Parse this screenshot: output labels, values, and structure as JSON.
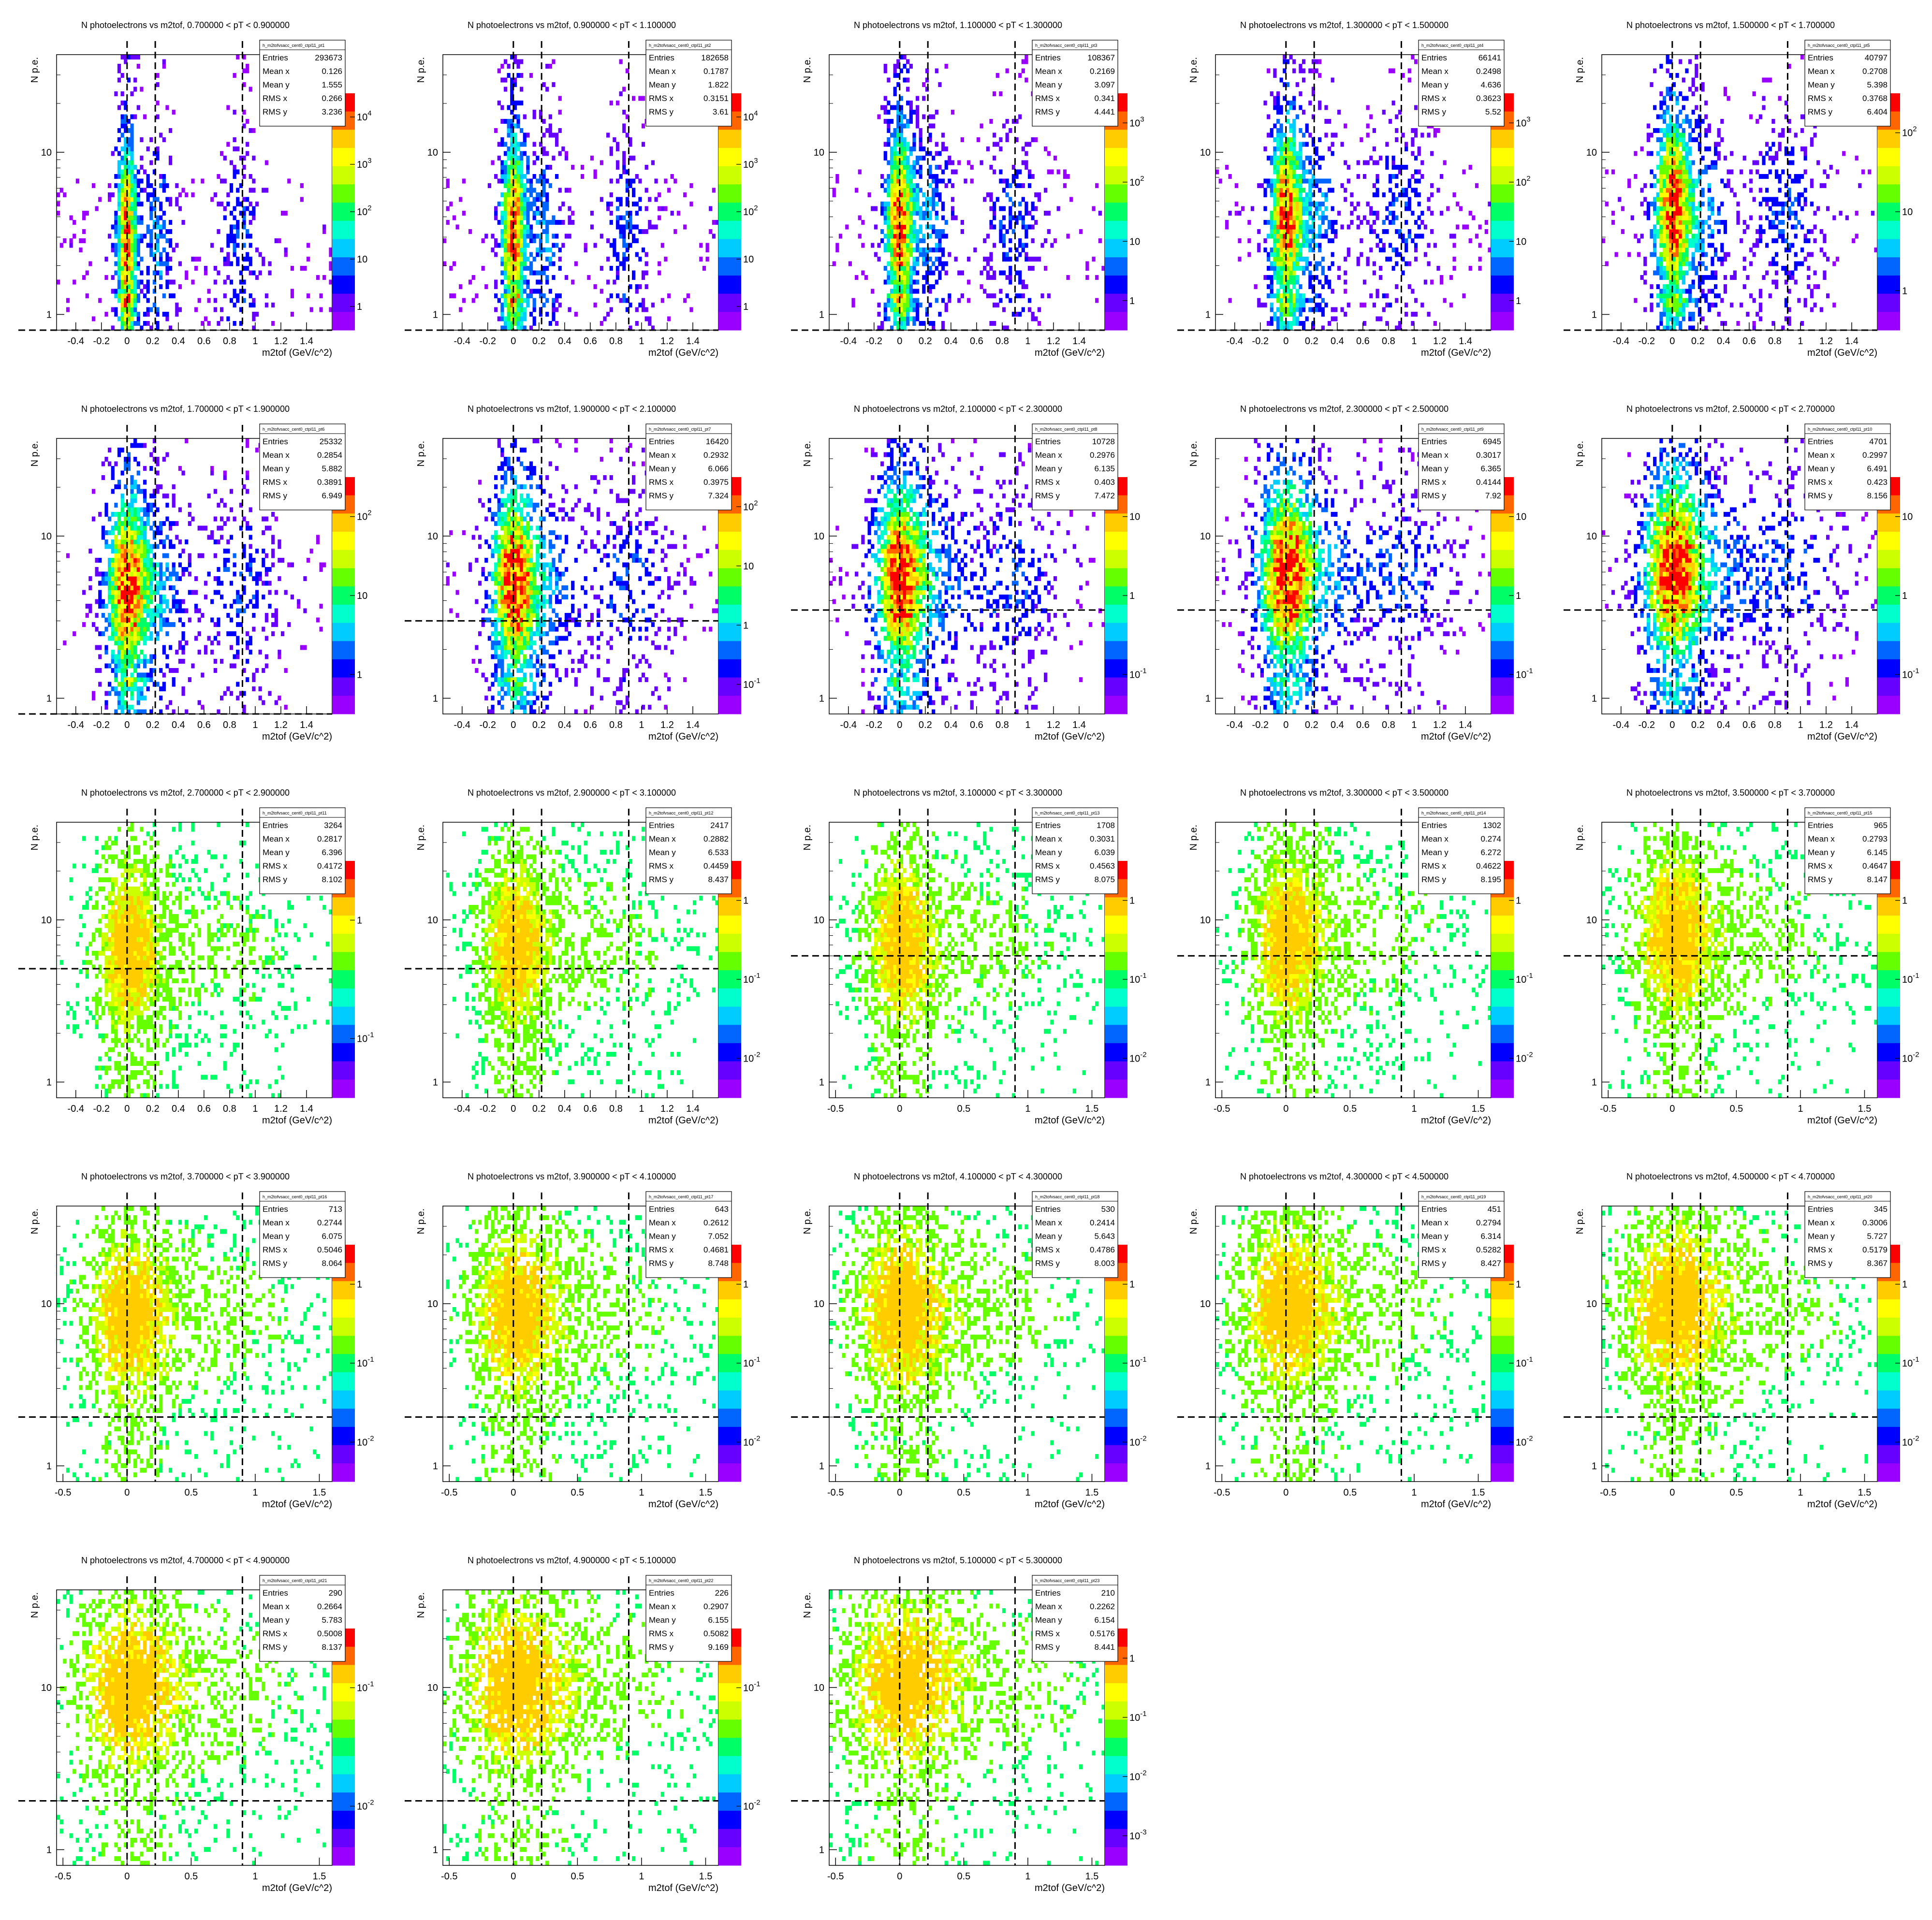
{
  "page": {
    "background": "#ffffff"
  },
  "style": {
    "frame_color": "#000000",
    "cut_line_color": "#000000",
    "palette": [
      "#ff0000",
      "#ff6600",
      "#ffcc00",
      "#ffff00",
      "#ccff00",
      "#66ff00",
      "#00ff66",
      "#00ffcc",
      "#00ccff",
      "#0066ff",
      "#0000ff",
      "#6600ff",
      "#9900ff"
    ]
  },
  "chart_data": [
    {
      "type": "heatmap",
      "title": "N photoelectrons vs m2tof, 0.700000 < pT < 0.900000",
      "hist_name": "h_m2tofvsacc_cent0_ctpl11_pt1",
      "xlabel": "m2tof (GeV/c^2)",
      "ylabel": "N p.e.",
      "xlim": [
        -0.55,
        1.6
      ],
      "ylim": [
        0.8,
        40
      ],
      "yscale": "log",
      "xticks": [
        "-0.4",
        "-0.2",
        "0",
        "0.2",
        "0.4",
        "0.6",
        "0.8",
        "1",
        "1.2",
        "1.4"
      ],
      "yticks": [
        "1",
        "10"
      ],
      "xcuts": [
        0,
        0.22,
        0.9
      ],
      "ycut": 0.8,
      "zticks": [
        "1",
        "10",
        "10^2",
        "10^3",
        "10^4"
      ],
      "stats": {
        "Entries": "293673",
        "Mean x": "0.126",
        "Mean y": "1.555",
        "RMS x": "0.266",
        "RMS y": "3.236"
      }
    },
    {
      "type": "heatmap",
      "title": "N photoelectrons vs m2tof, 0.900000 < pT < 1.100000",
      "hist_name": "h_m2tofvsacc_cent0_ctpl11_pt2",
      "xlabel": "m2tof (GeV/c^2)",
      "ylabel": "N p.e.",
      "xlim": [
        -0.55,
        1.6
      ],
      "ylim": [
        0.8,
        40
      ],
      "yscale": "log",
      "xticks": [
        "-0.4",
        "-0.2",
        "0",
        "0.2",
        "0.4",
        "0.6",
        "0.8",
        "1",
        "1.2",
        "1.4"
      ],
      "yticks": [
        "1",
        "10"
      ],
      "xcuts": [
        0,
        0.22,
        0.9
      ],
      "ycut": 0.8,
      "zticks": [
        "1",
        "10",
        "10^2",
        "10^3",
        "10^4"
      ],
      "stats": {
        "Entries": "182658",
        "Mean x": "0.1787",
        "Mean y": "1.822",
        "RMS x": "0.3151",
        "RMS y": "3.61"
      }
    },
    {
      "type": "heatmap",
      "title": "N photoelectrons vs m2tof, 1.100000 < pT < 1.300000",
      "hist_name": "h_m2tofvsacc_cent0_ctpl11_pt3",
      "xlabel": "m2tof (GeV/c^2)",
      "ylabel": "N p.e.",
      "xlim": [
        -0.55,
        1.6
      ],
      "ylim": [
        0.8,
        40
      ],
      "yscale": "log",
      "xticks": [
        "-0.4",
        "-0.2",
        "0",
        "0.2",
        "0.4",
        "0.6",
        "0.8",
        "1",
        "1.2",
        "1.4"
      ],
      "yticks": [
        "1",
        "10"
      ],
      "xcuts": [
        0,
        0.22,
        0.9
      ],
      "ycut": 0.8,
      "zticks": [
        "1",
        "10",
        "10^2",
        "10^3"
      ],
      "stats": {
        "Entries": "108367",
        "Mean x": "0.2169",
        "Mean y": "3.097",
        "RMS x": "0.341",
        "RMS y": "4.441"
      }
    },
    {
      "type": "heatmap",
      "title": "N photoelectrons vs m2tof, 1.300000 < pT < 1.500000",
      "hist_name": "h_m2tofvsacc_cent0_ctpl11_pt4",
      "xlabel": "m2tof (GeV/c^2)",
      "ylabel": "N p.e.",
      "xlim": [
        -0.55,
        1.6
      ],
      "ylim": [
        0.8,
        40
      ],
      "yscale": "log",
      "xticks": [
        "-0.4",
        "-0.2",
        "0",
        "0.2",
        "0.4",
        "0.6",
        "0.8",
        "1",
        "1.2",
        "1.4"
      ],
      "yticks": [
        "1",
        "10"
      ],
      "xcuts": [
        0,
        0.22,
        0.9
      ],
      "ycut": 0.8,
      "zticks": [
        "1",
        "10",
        "10^2",
        "10^3"
      ],
      "stats": {
        "Entries": "66141",
        "Mean x": "0.2498",
        "Mean y": "4.636",
        "RMS x": "0.3623",
        "RMS y": "5.52"
      }
    },
    {
      "type": "heatmap",
      "title": "N photoelectrons vs m2tof, 1.500000 < pT < 1.700000",
      "hist_name": "h_m2tofvsacc_cent0_ctpl11_pt5",
      "xlabel": "m2tof (GeV/c^2)",
      "ylabel": "N p.e.",
      "xlim": [
        -0.55,
        1.6
      ],
      "ylim": [
        0.8,
        40
      ],
      "yscale": "log",
      "xticks": [
        "-0.4",
        "-0.2",
        "0",
        "0.2",
        "0.4",
        "0.6",
        "0.8",
        "1",
        "1.2",
        "1.4"
      ],
      "yticks": [
        "1",
        "10"
      ],
      "xcuts": [
        0,
        0.22,
        0.9
      ],
      "ycut": 0.8,
      "zticks": [
        "1",
        "10",
        "10^2"
      ],
      "stats": {
        "Entries": "40797",
        "Mean x": "0.2708",
        "Mean y": "5.398",
        "RMS x": "0.3768",
        "RMS y": "6.404"
      }
    },
    {
      "type": "heatmap",
      "title": "N photoelectrons vs m2tof, 1.700000 < pT < 1.900000",
      "hist_name": "h_m2tofvsacc_cent0_ctpl11_pt6",
      "xlabel": "m2tof (GeV/c^2)",
      "ylabel": "N p.e.",
      "xlim": [
        -0.55,
        1.6
      ],
      "ylim": [
        0.8,
        40
      ],
      "yscale": "log",
      "xticks": [
        "-0.4",
        "-0.2",
        "0",
        "0.2",
        "0.4",
        "0.6",
        "0.8",
        "1",
        "1.2",
        "1.4"
      ],
      "yticks": [
        "1",
        "10"
      ],
      "xcuts": [
        0,
        0.22,
        0.9
      ],
      "ycut": 0.8,
      "zticks": [
        "1",
        "10",
        "10^2"
      ],
      "stats": {
        "Entries": "25332",
        "Mean x": "0.2854",
        "Mean y": "5.882",
        "RMS x": "0.3891",
        "RMS y": "6.949"
      }
    },
    {
      "type": "heatmap",
      "title": "N photoelectrons vs m2tof, 1.900000 < pT < 2.100000",
      "hist_name": "h_m2tofvsacc_cent0_ctpl11_pt7",
      "xlabel": "m2tof (GeV/c^2)",
      "ylabel": "N p.e.",
      "xlim": [
        -0.55,
        1.6
      ],
      "ylim": [
        0.8,
        40
      ],
      "yscale": "log",
      "xticks": [
        "-0.4",
        "-0.2",
        "0",
        "0.2",
        "0.4",
        "0.6",
        "0.8",
        "1",
        "1.2",
        "1.4"
      ],
      "yticks": [
        "1",
        "10"
      ],
      "xcuts": [
        0,
        0.22,
        0.9
      ],
      "ycut": 3,
      "zticks": [
        "10^-1",
        "1",
        "10",
        "10^2"
      ],
      "stats": {
        "Entries": "16420",
        "Mean x": "0.2932",
        "Mean y": "6.066",
        "RMS x": "0.3975",
        "RMS y": "7.324"
      }
    },
    {
      "type": "heatmap",
      "title": "N photoelectrons vs m2tof, 2.100000 < pT < 2.300000",
      "hist_name": "h_m2tofvsacc_cent0_ctpl11_pt8",
      "xlabel": "m2tof (GeV/c^2)",
      "ylabel": "N p.e.",
      "xlim": [
        -0.55,
        1.6
      ],
      "ylim": [
        0.8,
        40
      ],
      "yscale": "log",
      "xticks": [
        "-0.4",
        "-0.2",
        "0",
        "0.2",
        "0.4",
        "0.6",
        "0.8",
        "1",
        "1.2",
        "1.4"
      ],
      "yticks": [
        "1",
        "10"
      ],
      "xcuts": [
        0,
        0.22,
        0.9
      ],
      "ycut": 3.5,
      "zticks": [
        "10^-1",
        "1",
        "10"
      ],
      "stats": {
        "Entries": "10728",
        "Mean x": "0.2976",
        "Mean y": "6.135",
        "RMS x": "0.403",
        "RMS y": "7.472"
      }
    },
    {
      "type": "heatmap",
      "title": "N photoelectrons vs m2tof, 2.300000 < pT < 2.500000",
      "hist_name": "h_m2tofvsacc_cent0_ctpl11_pt9",
      "xlabel": "m2tof (GeV/c^2)",
      "ylabel": "N p.e.",
      "xlim": [
        -0.55,
        1.6
      ],
      "ylim": [
        0.8,
        40
      ],
      "yscale": "log",
      "xticks": [
        "-0.4",
        "-0.2",
        "0",
        "0.2",
        "0.4",
        "0.6",
        "0.8",
        "1",
        "1.2",
        "1.4"
      ],
      "yticks": [
        "1",
        "10"
      ],
      "xcuts": [
        0,
        0.22,
        0.9
      ],
      "ycut": 3.5,
      "zticks": [
        "10^-1",
        "1",
        "10"
      ],
      "stats": {
        "Entries": "6945",
        "Mean x": "0.3017",
        "Mean y": "6.365",
        "RMS x": "0.4144",
        "RMS y": "7.92"
      }
    },
    {
      "type": "heatmap",
      "title": "N photoelectrons vs m2tof, 2.500000 < pT < 2.700000",
      "hist_name": "h_m2tofvsacc_cent0_ctpl11_pt10",
      "xlabel": "m2tof (GeV/c^2)",
      "ylabel": "N p.e.",
      "xlim": [
        -0.55,
        1.6
      ],
      "ylim": [
        0.8,
        40
      ],
      "yscale": "log",
      "xticks": [
        "-0.4",
        "-0.2",
        "0",
        "0.2",
        "0.4",
        "0.6",
        "0.8",
        "1",
        "1.2",
        "1.4"
      ],
      "yticks": [
        "1",
        "10"
      ],
      "xcuts": [
        0,
        0.22,
        0.9
      ],
      "ycut": 3.5,
      "zticks": [
        "10^-1",
        "1",
        "10"
      ],
      "stats": {
        "Entries": "4701",
        "Mean x": "0.2997",
        "Mean y": "6.491",
        "RMS x": "0.423",
        "RMS y": "8.156"
      }
    },
    {
      "type": "heatmap",
      "title": "N photoelectrons vs m2tof, 2.700000 < pT < 2.900000",
      "hist_name": "h_m2tofvsacc_cent0_ctpl11_pt11",
      "xlabel": "m2tof (GeV/c^2)",
      "ylabel": "N p.e.",
      "xlim": [
        -0.55,
        1.6
      ],
      "ylim": [
        0.8,
        40
      ],
      "yscale": "log",
      "xticks": [
        "-0.4",
        "-0.2",
        "0",
        "0.2",
        "0.4",
        "0.6",
        "0.8",
        "1",
        "1.2",
        "1.4"
      ],
      "yticks": [
        "1",
        "10"
      ],
      "xcuts": [
        0,
        0.22,
        0.9
      ],
      "ycut": 5,
      "zticks": [
        "10^-1",
        "1"
      ],
      "stats": {
        "Entries": "3264",
        "Mean x": "0.2817",
        "Mean y": "6.396",
        "RMS x": "0.4172",
        "RMS y": "8.102"
      }
    },
    {
      "type": "heatmap",
      "title": "N photoelectrons vs m2tof, 2.900000 < pT < 3.100000",
      "hist_name": "h_m2tofvsacc_cent0_ctpl11_pt12",
      "xlabel": "m2tof (GeV/c^2)",
      "ylabel": "N p.e.",
      "xlim": [
        -0.55,
        1.6
      ],
      "ylim": [
        0.8,
        40
      ],
      "yscale": "log",
      "xticks": [
        "-0.4",
        "-0.2",
        "0",
        "0.2",
        "0.4",
        "0.6",
        "0.8",
        "1",
        "1.2",
        "1.4"
      ],
      "yticks": [
        "1",
        "10"
      ],
      "xcuts": [
        0,
        0.22,
        0.9
      ],
      "ycut": 5,
      "zticks": [
        "10^-2",
        "10^-1",
        "1"
      ],
      "stats": {
        "Entries": "2417",
        "Mean x": "0.2882",
        "Mean y": "6.533",
        "RMS x": "0.4459",
        "RMS y": "8.437"
      }
    },
    {
      "type": "heatmap",
      "title": "N photoelectrons vs m2tof, 3.100000 < pT < 3.300000",
      "hist_name": "h_m2tofvsacc_cent0_ctpl11_pt13",
      "xlabel": "m2tof (GeV/c^2)",
      "ylabel": "N p.e.",
      "xlim": [
        -0.55,
        1.6
      ],
      "ylim": [
        0.8,
        40
      ],
      "yscale": "log",
      "xticks": [
        "-0.5",
        "0",
        "0.5",
        "1",
        "1.5"
      ],
      "yticks": [
        "1",
        "10"
      ],
      "xcuts": [
        0,
        0.22,
        0.9
      ],
      "ycut": 6,
      "zticks": [
        "10^-2",
        "10^-1",
        "1"
      ],
      "stats": {
        "Entries": "1708",
        "Mean x": "0.3031",
        "Mean y": "6.039",
        "RMS x": "0.4563",
        "RMS y": "8.075"
      }
    },
    {
      "type": "heatmap",
      "title": "N photoelectrons vs m2tof, 3.300000 < pT < 3.500000",
      "hist_name": "h_m2tofvsacc_cent0_ctpl11_pt14",
      "xlabel": "m2tof (GeV/c^2)",
      "ylabel": "N p.e.",
      "xlim": [
        -0.55,
        1.6
      ],
      "ylim": [
        0.8,
        40
      ],
      "yscale": "log",
      "xticks": [
        "-0.5",
        "0",
        "0.5",
        "1",
        "1.5"
      ],
      "yticks": [
        "1",
        "10"
      ],
      "xcuts": [
        0,
        0.22,
        0.9
      ],
      "ycut": 6,
      "zticks": [
        "10^-2",
        "10^-1",
        "1"
      ],
      "stats": {
        "Entries": "1302",
        "Mean x": "0.274",
        "Mean y": "6.272",
        "RMS x": "0.4622",
        "RMS y": "8.195"
      }
    },
    {
      "type": "heatmap",
      "title": "N photoelectrons vs m2tof, 3.500000 < pT < 3.700000",
      "hist_name": "h_m2tofvsacc_cent0_ctpl11_pt15",
      "xlabel": "m2tof (GeV/c^2)",
      "ylabel": "N p.e.",
      "xlim": [
        -0.55,
        1.6
      ],
      "ylim": [
        0.8,
        40
      ],
      "yscale": "log",
      "xticks": [
        "-0.5",
        "0",
        "0.5",
        "1",
        "1.5"
      ],
      "yticks": [
        "1",
        "10"
      ],
      "xcuts": [
        0,
        0.22,
        0.9
      ],
      "ycut": 6,
      "zticks": [
        "10^-2",
        "10^-1",
        "1"
      ],
      "stats": {
        "Entries": "965",
        "Mean x": "0.2793",
        "Mean y": "6.145",
        "RMS x": "0.4647",
        "RMS y": "8.147"
      }
    },
    {
      "type": "heatmap",
      "title": "N photoelectrons vs m2tof, 3.700000 < pT < 3.900000",
      "hist_name": "h_m2tofvsacc_cent0_ctpl11_pt16",
      "xlabel": "m2tof (GeV/c^2)",
      "ylabel": "N p.e.",
      "xlim": [
        -0.55,
        1.6
      ],
      "ylim": [
        0.8,
        40
      ],
      "yscale": "log",
      "xticks": [
        "-0.5",
        "0",
        "0.5",
        "1",
        "1.5"
      ],
      "yticks": [
        "1",
        "10"
      ],
      "xcuts": [
        0,
        0.22,
        0.9
      ],
      "ycut": 2,
      "zticks": [
        "10^-2",
        "10^-1",
        "1"
      ],
      "stats": {
        "Entries": "713",
        "Mean x": "0.2744",
        "Mean y": "6.075",
        "RMS x": "0.5046",
        "RMS y": "8.064"
      }
    },
    {
      "type": "heatmap",
      "title": "N photoelectrons vs m2tof, 3.900000 < pT < 4.100000",
      "hist_name": "h_m2tofvsacc_cent0_ctpl11_pt17",
      "xlabel": "m2tof (GeV/c^2)",
      "ylabel": "N p.e.",
      "xlim": [
        -0.55,
        1.6
      ],
      "ylim": [
        0.8,
        40
      ],
      "yscale": "log",
      "xticks": [
        "-0.5",
        "0",
        "0.5",
        "1",
        "1.5"
      ],
      "yticks": [
        "1",
        "10"
      ],
      "xcuts": [
        0,
        0.22,
        0.9
      ],
      "ycut": 2,
      "zticks": [
        "10^-2",
        "10^-1",
        "1"
      ],
      "stats": {
        "Entries": "643",
        "Mean x": "0.2612",
        "Mean y": "7.052",
        "RMS x": "0.4681",
        "RMS y": "8.748"
      }
    },
    {
      "type": "heatmap",
      "title": "N photoelectrons vs m2tof, 4.100000 < pT < 4.300000",
      "hist_name": "h_m2tofvsacc_cent0_ctpl11_pt18",
      "xlabel": "m2tof (GeV/c^2)",
      "ylabel": "N p.e.",
      "xlim": [
        -0.55,
        1.6
      ],
      "ylim": [
        0.8,
        40
      ],
      "yscale": "log",
      "xticks": [
        "-0.5",
        "0",
        "0.5",
        "1",
        "1.5"
      ],
      "yticks": [
        "1",
        "10"
      ],
      "xcuts": [
        0,
        0.22,
        0.9
      ],
      "ycut": 2,
      "zticks": [
        "10^-2",
        "10^-1",
        "1"
      ],
      "stats": {
        "Entries": "530",
        "Mean x": "0.2414",
        "Mean y": "5.643",
        "RMS x": "0.4786",
        "RMS y": "8.003"
      }
    },
    {
      "type": "heatmap",
      "title": "N photoelectrons vs m2tof, 4.300000 < pT < 4.500000",
      "hist_name": "h_m2tofvsacc_cent0_ctpl11_pt19",
      "xlabel": "m2tof (GeV/c^2)",
      "ylabel": "N p.e.",
      "xlim": [
        -0.55,
        1.6
      ],
      "ylim": [
        0.8,
        40
      ],
      "yscale": "log",
      "xticks": [
        "-0.5",
        "0",
        "0.5",
        "1",
        "1.5"
      ],
      "yticks": [
        "1",
        "10"
      ],
      "xcuts": [
        0,
        0.22,
        0.9
      ],
      "ycut": 2,
      "zticks": [
        "10^-2",
        "10^-1",
        "1"
      ],
      "stats": {
        "Entries": "451",
        "Mean x": "0.2794",
        "Mean y": "6.314",
        "RMS x": "0.5282",
        "RMS y": "8.427"
      }
    },
    {
      "type": "heatmap",
      "title": "N photoelectrons vs m2tof, 4.500000 < pT < 4.700000",
      "hist_name": "h_m2tofvsacc_cent0_ctpl11_pt20",
      "xlabel": "m2tof (GeV/c^2)",
      "ylabel": "N p.e.",
      "xlim": [
        -0.55,
        1.6
      ],
      "ylim": [
        0.8,
        40
      ],
      "yscale": "log",
      "xticks": [
        "-0.5",
        "0",
        "0.5",
        "1",
        "1.5"
      ],
      "yticks": [
        "1",
        "10"
      ],
      "xcuts": [
        0,
        0.22,
        0.9
      ],
      "ycut": 2,
      "zticks": [
        "10^-2",
        "10^-1",
        "1"
      ],
      "stats": {
        "Entries": "345",
        "Mean x": "0.3006",
        "Mean y": "5.727",
        "RMS x": "0.5179",
        "RMS y": "8.367"
      }
    },
    {
      "type": "heatmap",
      "title": "N photoelectrons vs m2tof, 4.700000 < pT < 4.900000",
      "hist_name": "h_m2tofvsacc_cent0_ctpl11_pt21",
      "xlabel": "m2tof (GeV/c^2)",
      "ylabel": "N p.e.",
      "xlim": [
        -0.55,
        1.6
      ],
      "ylim": [
        0.8,
        40
      ],
      "yscale": "log",
      "xticks": [
        "-0.5",
        "0",
        "0.5",
        "1",
        "1.5"
      ],
      "yticks": [
        "1",
        "10"
      ],
      "xcuts": [
        0,
        0.22,
        0.9
      ],
      "ycut": 2,
      "zticks": [
        "10^-2",
        "10^-1"
      ],
      "stats": {
        "Entries": "290",
        "Mean x": "0.2664",
        "Mean y": "5.783",
        "RMS x": "0.5008",
        "RMS y": "8.137"
      }
    },
    {
      "type": "heatmap",
      "title": "N photoelectrons vs m2tof, 4.900000 < pT < 5.100000",
      "hist_name": "h_m2tofvsacc_cent0_ctpl11_pt22",
      "xlabel": "m2tof (GeV/c^2)",
      "ylabel": "N p.e.",
      "xlim": [
        -0.55,
        1.6
      ],
      "ylim": [
        0.8,
        40
      ],
      "yscale": "log",
      "xticks": [
        "-0.5",
        "0",
        "0.5",
        "1",
        "1.5"
      ],
      "yticks": [
        "1",
        "10"
      ],
      "xcuts": [
        0,
        0.22,
        0.9
      ],
      "ycut": 2,
      "zticks": [
        "10^-2",
        "10^-1"
      ],
      "stats": {
        "Entries": "226",
        "Mean x": "0.2907",
        "Mean y": "6.155",
        "RMS x": "0.5082",
        "RMS y": "9.169"
      }
    },
    {
      "type": "heatmap",
      "title": "N photoelectrons vs m2tof, 5.100000 < pT < 5.300000",
      "hist_name": "h_m2tofvsacc_cent0_ctpl11_pt23",
      "xlabel": "m2tof (GeV/c^2)",
      "ylabel": "N p.e.",
      "xlim": [
        -0.55,
        1.6
      ],
      "ylim": [
        0.8,
        40
      ],
      "yscale": "log",
      "xticks": [
        "-0.5",
        "0",
        "0.5",
        "1",
        "1.5"
      ],
      "yticks": [
        "1",
        "10"
      ],
      "xcuts": [
        0,
        0.22,
        0.9
      ],
      "ycut": 2,
      "zticks": [
        "10^-3",
        "10^-2",
        "10^-1",
        "1"
      ],
      "stats": {
        "Entries": "210",
        "Mean x": "0.2262",
        "Mean y": "6.154",
        "RMS x": "0.5176",
        "RMS y": "8.441"
      }
    }
  ]
}
